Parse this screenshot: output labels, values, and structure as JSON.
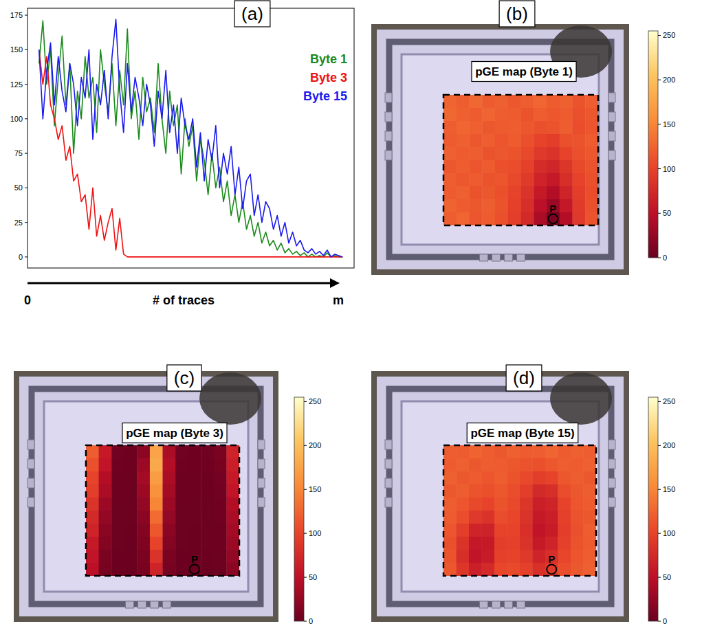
{
  "chart_data": [
    {
      "type": "line",
      "title": "(a)",
      "x_label": "# of traces",
      "x_start_label": "0",
      "x_end_label": "m",
      "x": [
        0,
        1,
        2,
        3,
        4,
        5,
        6,
        7,
        8,
        9,
        10,
        11,
        12,
        13,
        14,
        15,
        16,
        17,
        18,
        19,
        20,
        21,
        22,
        23,
        24,
        25,
        26,
        27,
        28,
        29,
        30,
        31,
        32,
        33,
        34,
        35,
        36,
        37,
        38,
        39,
        40,
        41,
        42,
        43,
        44,
        45,
        46,
        47,
        48,
        49,
        50,
        51,
        52,
        53,
        54,
        55,
        56,
        57,
        58,
        59,
        60,
        61,
        62,
        63,
        64,
        65,
        66,
        67,
        68,
        69,
        70,
        71,
        72,
        73,
        74,
        75,
        76,
        77,
        78,
        79
      ],
      "xlim": [
        -3,
        82
      ],
      "ylim": [
        -8,
        180
      ],
      "yticks": [
        0,
        25,
        50,
        75,
        100,
        125,
        150,
        175
      ],
      "tick_labels": "y",
      "grid": false,
      "legend": "upper right",
      "series": [
        {
          "name": "Byte 1",
          "color": "#1a8a1a",
          "values": [
            140,
            171,
            125,
            150,
            95,
            130,
            160,
            110,
            140,
            75,
            120,
            100,
            145,
            115,
            130,
            90,
            150,
            125,
            105,
            140,
            95,
            135,
            110,
            165,
            100,
            120,
            85,
            130,
            105,
            115,
            90,
            140,
            100,
            75,
            120,
            95,
            110,
            60,
            100,
            80,
            95,
            55,
            85,
            70,
            45,
            75,
            50,
            65,
            40,
            55,
            30,
            45,
            25,
            40,
            20,
            30,
            15,
            25,
            10,
            18,
            8,
            12,
            5,
            10,
            3,
            6,
            2,
            4,
            1,
            3,
            0,
            2,
            0,
            1,
            0,
            3,
            0,
            1,
            0,
            0
          ]
        },
        {
          "name": "Byte 3",
          "color": "#ee1111",
          "values": [
            150,
            125,
            145,
            110,
            100,
            85,
            95,
            70,
            80,
            55,
            60,
            40,
            45,
            20,
            50,
            15,
            30,
            12,
            25,
            35,
            5,
            28,
            2,
            0,
            0,
            0,
            0,
            0,
            0,
            0,
            0,
            0,
            0,
            0,
            0,
            0,
            0,
            0,
            0,
            0,
            0,
            0,
            0,
            0,
            0,
            0,
            0,
            0,
            0,
            0,
            0,
            0,
            0,
            0,
            0,
            0,
            0,
            0,
            0,
            0,
            0,
            0,
            0,
            0,
            0,
            0,
            0,
            0,
            0,
            0,
            0,
            0,
            0,
            0,
            0,
            0,
            0,
            0,
            0,
            0
          ]
        },
        {
          "name": "Byte 15",
          "color": "#1a1aee",
          "values": [
            150,
            100,
            135,
            155,
            110,
            145,
            120,
            105,
            140,
            125,
            95,
            130,
            115,
            150,
            85,
            125,
            110,
            135,
            100,
            145,
            172,
            120,
            90,
            140,
            105,
            130,
            115,
            95,
            125,
            110,
            80,
            120,
            100,
            135,
            90,
            110,
            75,
            115,
            95,
            85,
            100,
            65,
            90,
            55,
            85,
            70,
            95,
            50,
            75,
            60,
            80,
            45,
            65,
            35,
            55,
            60,
            30,
            45,
            25,
            40,
            35,
            20,
            30,
            15,
            25,
            10,
            18,
            8,
            12,
            5,
            3,
            6,
            2,
            4,
            1,
            5,
            0,
            2,
            1,
            0
          ]
        }
      ]
    },
    {
      "type": "heatmap",
      "title": "(b)",
      "subtitle": "pGE map (Byte 1)",
      "tick_labels": false,
      "color_range": [
        0,
        255
      ],
      "color_ticks": [
        0,
        50,
        100,
        150,
        200,
        250
      ],
      "annotations": [
        {
          "text": "P",
          "x": 8,
          "y": 9
        }
      ],
      "cells": [
        [
          125,
          120,
          128,
          118,
          122,
          115,
          120,
          126,
          118,
          122,
          112,
          120
        ],
        [
          128,
          122,
          118,
          125,
          120,
          118,
          112,
          120,
          115,
          118,
          110,
          116
        ],
        [
          120,
          126,
          122,
          116,
          118,
          120,
          115,
          110,
          112,
          120,
          108,
          114
        ],
        [
          118,
          122,
          115,
          120,
          114,
          118,
          110,
          100,
          95,
          110,
          112,
          118
        ],
        [
          122,
          118,
          120,
          112,
          116,
          112,
          105,
          90,
          85,
          100,
          110,
          115
        ],
        [
          116,
          120,
          114,
          118,
          110,
          108,
          98,
          78,
          72,
          88,
          105,
          112
        ],
        [
          120,
          115,
          118,
          112,
          114,
          105,
          92,
          70,
          60,
          80,
          100,
          110
        ],
        [
          118,
          122,
          112,
          116,
          110,
          100,
          85,
          60,
          45,
          70,
          95,
          108
        ],
        [
          124,
          118,
          116,
          120,
          112,
          98,
          80,
          50,
          30,
          58,
          92,
          110
        ],
        [
          120,
          126,
          114,
          118,
          110,
          95,
          75,
          40,
          10,
          45,
          90,
          112
        ]
      ]
    },
    {
      "type": "heatmap",
      "title": "(c)",
      "subtitle": "pGE map (Byte 3)",
      "tick_labels": false,
      "color_range": [
        0,
        255
      ],
      "color_ticks": [
        0,
        50,
        100,
        150,
        200,
        250
      ],
      "annotations": [
        {
          "text": "P",
          "x": 8,
          "y": 9
        }
      ],
      "cells": [
        [
          120,
          60,
          5,
          3,
          20,
          175,
          40,
          5,
          3,
          5,
          10,
          70
        ],
        [
          110,
          55,
          4,
          3,
          30,
          180,
          45,
          4,
          3,
          4,
          8,
          65
        ],
        [
          100,
          45,
          3,
          2,
          35,
          170,
          40,
          3,
          2,
          3,
          6,
          60
        ],
        [
          95,
          40,
          3,
          2,
          30,
          160,
          35,
          3,
          2,
          3,
          5,
          55
        ],
        [
          85,
          30,
          2,
          2,
          25,
          150,
          30,
          2,
          2,
          2,
          4,
          45
        ],
        [
          75,
          25,
          2,
          2,
          20,
          130,
          25,
          2,
          2,
          2,
          4,
          40
        ],
        [
          70,
          20,
          2,
          1,
          15,
          115,
          20,
          2,
          1,
          2,
          3,
          35
        ],
        [
          60,
          15,
          2,
          1,
          12,
          100,
          15,
          2,
          1,
          2,
          3,
          30
        ],
        [
          55,
          10,
          1,
          1,
          10,
          85,
          10,
          1,
          1,
          1,
          2,
          25
        ],
        [
          50,
          8,
          1,
          1,
          8,
          70,
          8,
          1,
          1,
          1,
          2,
          20
        ]
      ]
    },
    {
      "type": "heatmap",
      "title": "(d)",
      "subtitle": "pGE map (Byte 15)",
      "tick_labels": false,
      "color_range": [
        0,
        255
      ],
      "color_ticks": [
        0,
        50,
        100,
        150,
        200,
        250
      ],
      "annotations": [
        {
          "text": "P",
          "x": 8,
          "y": 9
        }
      ],
      "cells": [
        [
          120,
          118,
          124,
          120,
          116,
          122,
          118,
          120,
          125,
          118,
          122,
          120
        ],
        [
          118,
          122,
          116,
          120,
          118,
          115,
          112,
          110,
          115,
          120,
          118,
          122
        ],
        [
          122,
          116,
          118,
          114,
          120,
          112,
          105,
          95,
          100,
          115,
          120,
          116
        ],
        [
          116,
          120,
          112,
          110,
          115,
          108,
          95,
          75,
          80,
          108,
          116,
          120
        ],
        [
          120,
          114,
          105,
          100,
          112,
          105,
          88,
          65,
          70,
          100,
          114,
          118
        ],
        [
          118,
          108,
          90,
          85,
          108,
          102,
          85,
          60,
          65,
          98,
          112,
          116
        ],
        [
          114,
          95,
          70,
          68,
          100,
          100,
          82,
          55,
          62,
          95,
          110,
          120
        ],
        [
          110,
          85,
          58,
          60,
          95,
          98,
          85,
          60,
          70,
          98,
          112,
          118
        ],
        [
          112,
          80,
          55,
          62,
          98,
          100,
          90,
          70,
          80,
          102,
          114,
          120
        ],
        [
          115,
          88,
          65,
          75,
          102,
          105,
          98,
          82,
          90,
          108,
          116,
          122
        ]
      ]
    }
  ]
}
